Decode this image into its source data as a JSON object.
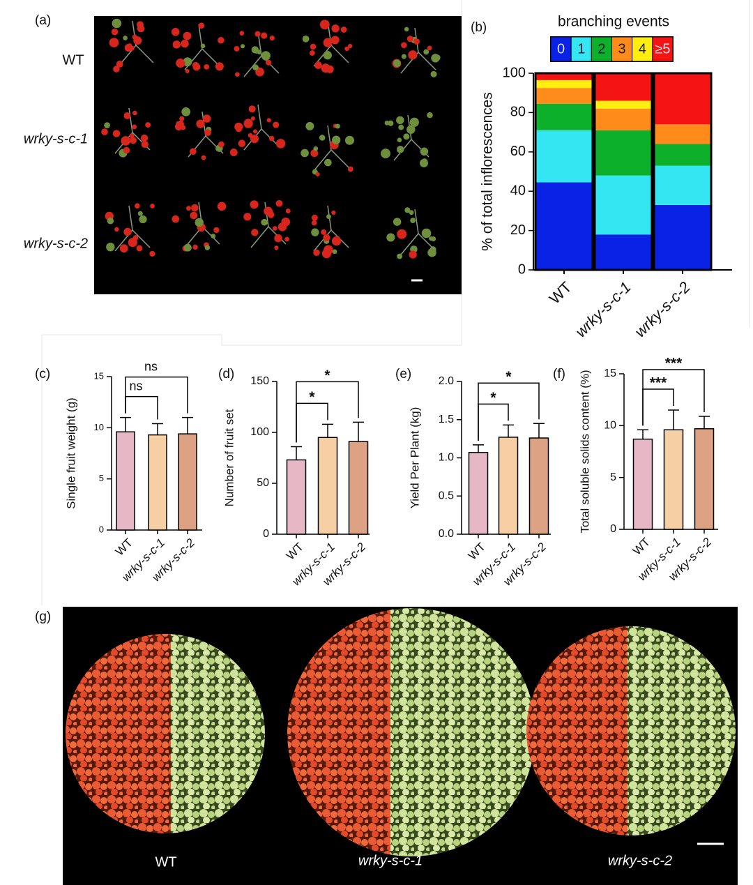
{
  "panels": {
    "a": {
      "label": "(a)",
      "rows": [
        "WT",
        "wrky-s-c-1",
        "wrky-s-c-2"
      ]
    },
    "g": {
      "label": "(g)",
      "groups": [
        "WT",
        "wrky-s-c-1",
        "wrky-s-c-2"
      ]
    }
  },
  "chart_data": [
    {
      "type": "stacked_bar",
      "label": "(b)",
      "legend_title": "branching events",
      "categories": [
        "WT",
        "wrky-s-c-1",
        "wrky-s-c-2"
      ],
      "series": [
        {
          "name": "0",
          "color": "#0a22e6",
          "values": [
            44.5,
            18,
            33
          ]
        },
        {
          "name": "1",
          "color": "#33e6f2",
          "values": [
            26.5,
            30,
            20
          ]
        },
        {
          "name": "2",
          "color": "#0db02a",
          "values": [
            13.5,
            23,
            11
          ]
        },
        {
          "name": "3",
          "color": "#ff8c1a",
          "values": [
            8,
            11,
            10
          ]
        },
        {
          "name": "4",
          "color": "#ffee10",
          "values": [
            4,
            4,
            0
          ]
        },
        {
          "name": "≥5",
          "color": "#f41414",
          "values": [
            3.5,
            14,
            26
          ]
        }
      ],
      "ylim": [
        0,
        100
      ],
      "yticks": [
        0,
        20,
        40,
        60,
        80,
        100
      ],
      "ylabel": "% of total inflorescences"
    },
    {
      "type": "bar",
      "label": "(c)",
      "categories": [
        "WT",
        "wrky-s-c-1",
        "wrky-s-c-2"
      ],
      "values": [
        9.6,
        9.3,
        9.4
      ],
      "errors": [
        1.4,
        1.1,
        1.6
      ],
      "colors": [
        "#e6b8c5",
        "#f6cfa4",
        "#dca283"
      ],
      "ylim": [
        0,
        15
      ],
      "yticks": [
        0,
        5,
        10,
        15
      ],
      "ylabel": "Single fruit weight (g)",
      "comparisons": [
        {
          "groups": [
            "WT",
            "wrky-s-c-1"
          ],
          "label": "ns"
        },
        {
          "groups": [
            "WT",
            "wrky-s-c-2"
          ],
          "label": "ns"
        }
      ]
    },
    {
      "type": "bar",
      "label": "(d)",
      "categories": [
        "WT",
        "wrky-s-c-1",
        "wrky-s-c-2"
      ],
      "values": [
        73,
        95,
        91
      ],
      "errors": [
        13,
        13,
        19
      ],
      "colors": [
        "#e6b8c5",
        "#f6cfa4",
        "#dca283"
      ],
      "ylim": [
        0,
        150
      ],
      "yticks": [
        0,
        50,
        100,
        150
      ],
      "ylabel": "Number of fruit set",
      "comparisons": [
        {
          "groups": [
            "WT",
            "wrky-s-c-1"
          ],
          "label": "*"
        },
        {
          "groups": [
            "WT",
            "wrky-s-c-2"
          ],
          "label": "*"
        }
      ]
    },
    {
      "type": "bar",
      "label": "(e)",
      "categories": [
        "WT",
        "wrky-s-c-1",
        "wrky-s-c-2"
      ],
      "values": [
        1.07,
        1.27,
        1.26
      ],
      "errors": [
        0.1,
        0.16,
        0.19
      ],
      "colors": [
        "#e6b8c5",
        "#f6cfa4",
        "#dca283"
      ],
      "ylim": [
        0,
        2
      ],
      "yticks": [
        {
          "value": 0,
          "label": "0.0"
        },
        0.5,
        {
          "value": 1,
          "label": "1.0"
        },
        1.5,
        {
          "value": 2,
          "label": "2.0"
        }
      ],
      "ylabel": "Yield Per Plant (kg)",
      "comparisons": [
        {
          "groups": [
            "WT",
            "wrky-s-c-1"
          ],
          "label": "*"
        },
        {
          "groups": [
            "WT",
            "wrky-s-c-2"
          ],
          "label": "*"
        }
      ]
    },
    {
      "type": "bar",
      "label": "(f)",
      "categories": [
        "WT",
        "wrky-s-c-1",
        "wrky-s-c-2"
      ],
      "values": [
        8.7,
        9.6,
        9.7
      ],
      "errors": [
        0.9,
        1.9,
        1.2
      ],
      "colors": [
        "#e6b8c5",
        "#f6cfa4",
        "#dca283"
      ],
      "ylim": [
        0,
        15
      ],
      "yticks": [
        0,
        5,
        10,
        15
      ],
      "ylabel": "Total soluble solids content (%)",
      "comparisons": [
        {
          "groups": [
            "WT",
            "wrky-s-c-1"
          ],
          "label": "***"
        },
        {
          "groups": [
            "WT",
            "wrky-s-c-2"
          ],
          "label": "***"
        }
      ]
    }
  ]
}
